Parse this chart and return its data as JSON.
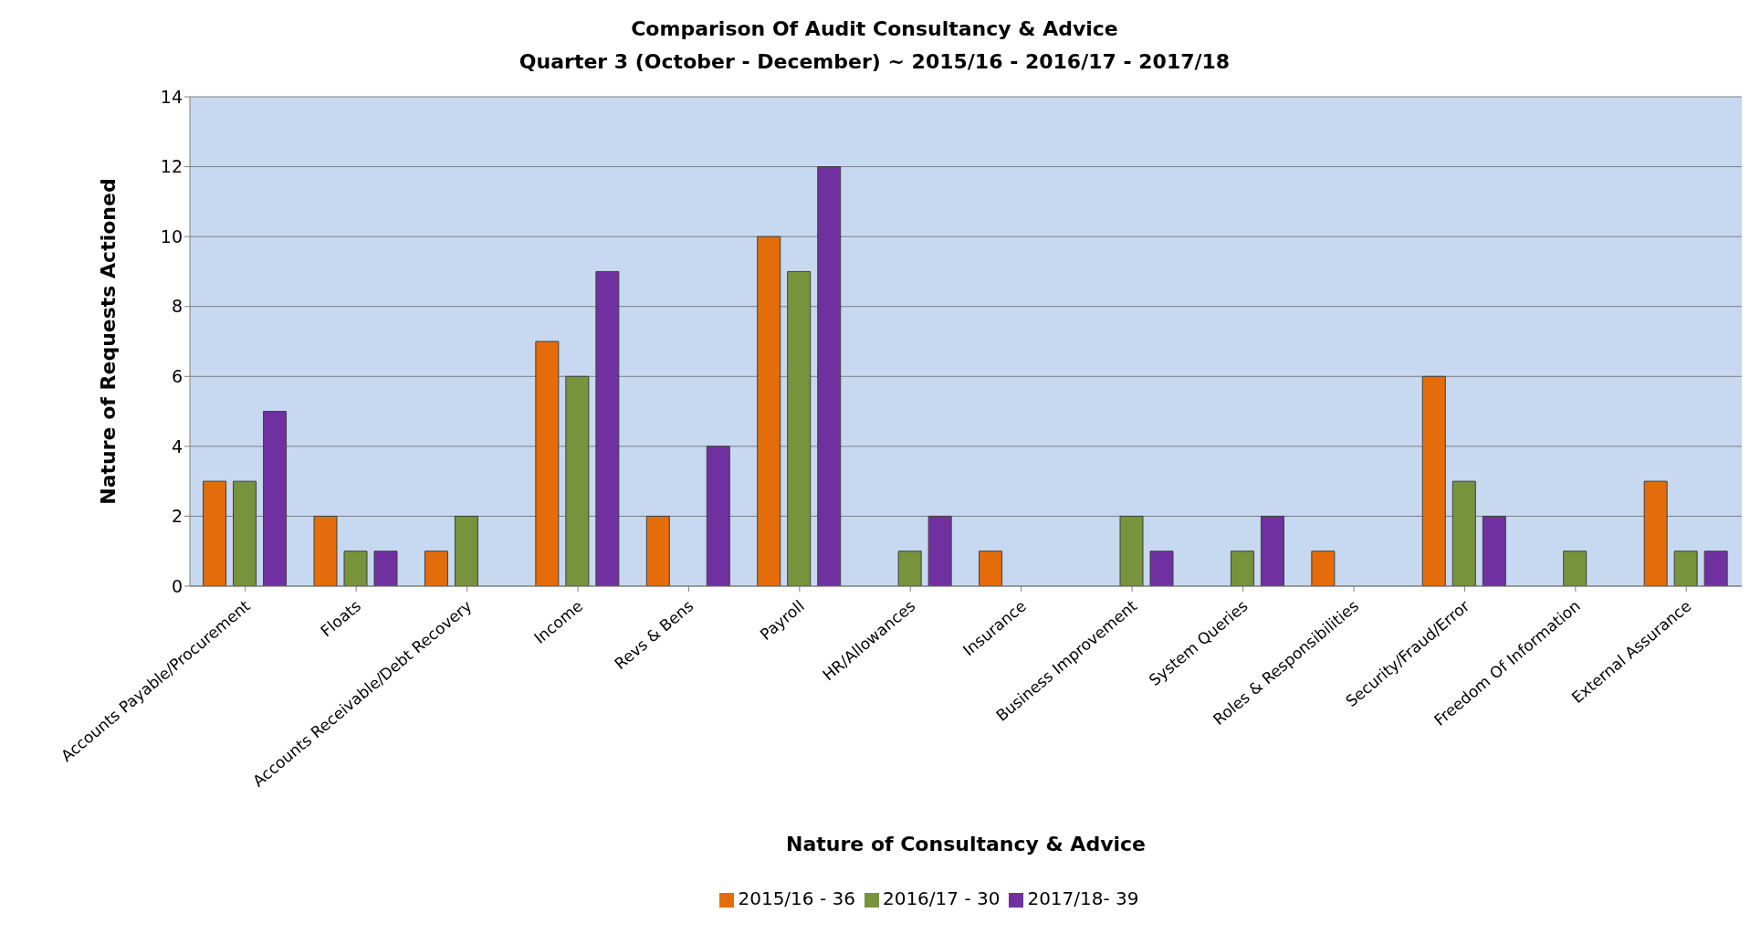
{
  "chart_data": {
    "type": "bar",
    "title": "Comparison Of Audit Consultancy & Advice",
    "subtitle": "Quarter 3  (October - December) ~ 2015/16 - 2016/17 - 2017/18",
    "xlabel": "Nature of Consultancy & Advice",
    "ylabel": "Nature of Requests Actioned",
    "categories": [
      "Accounts Payable/Procurement",
      "Floats",
      "Accounts Receivable/Debt Recovery",
      "Income",
      "Revs & Bens",
      "Payroll",
      "HR/Allowances",
      "Insurance",
      "Business Improvement",
      "System Queries",
      "Roles & Responsibilities",
      "Security/Fraud/Error",
      "Freedom Of Information",
      "External Assurance"
    ],
    "series": [
      {
        "name": "2015/16 - 36",
        "color": "#e46c0a",
        "values": [
          3,
          2,
          1,
          7,
          2,
          10,
          0,
          1,
          0,
          0,
          1,
          6,
          0,
          3
        ]
      },
      {
        "name": "2016/17 - 30",
        "color": "#77933c",
        "values": [
          3,
          1,
          2,
          6,
          0,
          9,
          1,
          0,
          2,
          1,
          0,
          3,
          1,
          1
        ]
      },
      {
        "name": "2017/18- 39",
        "color": "#7030a0",
        "values": [
          5,
          1,
          0,
          9,
          4,
          12,
          2,
          0,
          1,
          2,
          0,
          2,
          0,
          1
        ]
      }
    ],
    "ylim": [
      0,
      14
    ],
    "yticks": [
      0,
      2,
      4,
      6,
      8,
      10,
      12,
      14
    ],
    "grid": "y",
    "legend": "bottom"
  }
}
